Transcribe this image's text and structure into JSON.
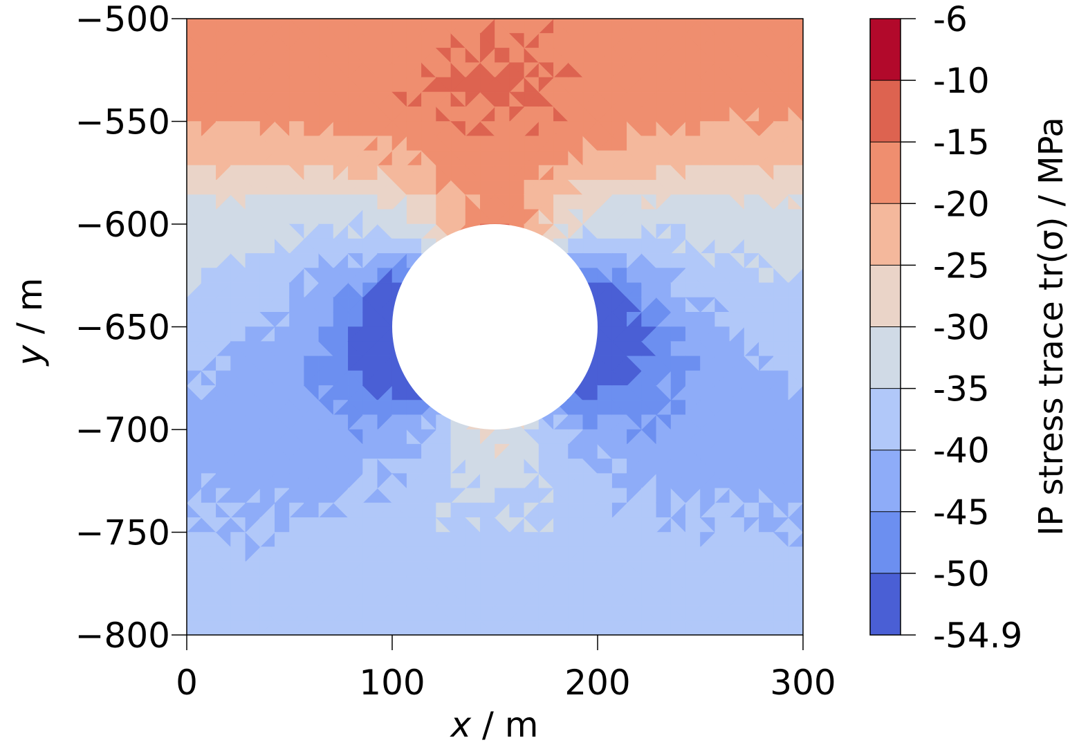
{
  "chart_data": {
    "type": "heatmap",
    "title": "",
    "xlabel": {
      "symbol": "x",
      "unit": " / m"
    },
    "ylabel": {
      "symbol": "y",
      "unit": " / m"
    },
    "xlim": [
      0,
      300
    ],
    "ylim": [
      -800,
      -500
    ],
    "x_ticks": [
      0,
      100,
      200,
      300
    ],
    "x_tick_labels": [
      "0",
      "100",
      "200",
      "300"
    ],
    "y_ticks": [
      -500,
      -550,
      -600,
      -650,
      -700,
      -750,
      -800
    ],
    "y_tick_labels": [
      "−500",
      "−550",
      "−600",
      "−650",
      "−700",
      "−750",
      "−800"
    ],
    "cavity": {
      "center_x": 150,
      "center_y": -650,
      "radius": 50
    },
    "field": {
      "quantity": "IP stress trace",
      "unit": "MPa",
      "description_levels": [
        {
          "y": -500,
          "value": -17
        },
        {
          "y": -540,
          "value": -17
        },
        {
          "y": -570,
          "value": -22
        },
        {
          "y": -590,
          "value": -28
        },
        {
          "y": -640,
          "value": -33
        },
        {
          "y": -700,
          "value": -38
        }
      ]
    },
    "colorbar": {
      "label": "IP stress trace tr(σ) / MPa",
      "levels": [
        -54.9,
        -50,
        -45,
        -40,
        -35,
        -30,
        -25,
        -20,
        -15,
        -10,
        -6
      ],
      "tick_labels": [
        "-54.9",
        "-50",
        "-45",
        "-40",
        "-35",
        "-30",
        "-25",
        "-20",
        "-15",
        "-10",
        "-6"
      ],
      "colors": [
        "#4a5fd5",
        "#6c8ff0",
        "#8eacf8",
        "#b1c8f9",
        "#d0dae6",
        "#ead4c8",
        "#f4b89c",
        "#ef8e6f",
        "#dd6350",
        "#b2092b"
      ]
    }
  }
}
